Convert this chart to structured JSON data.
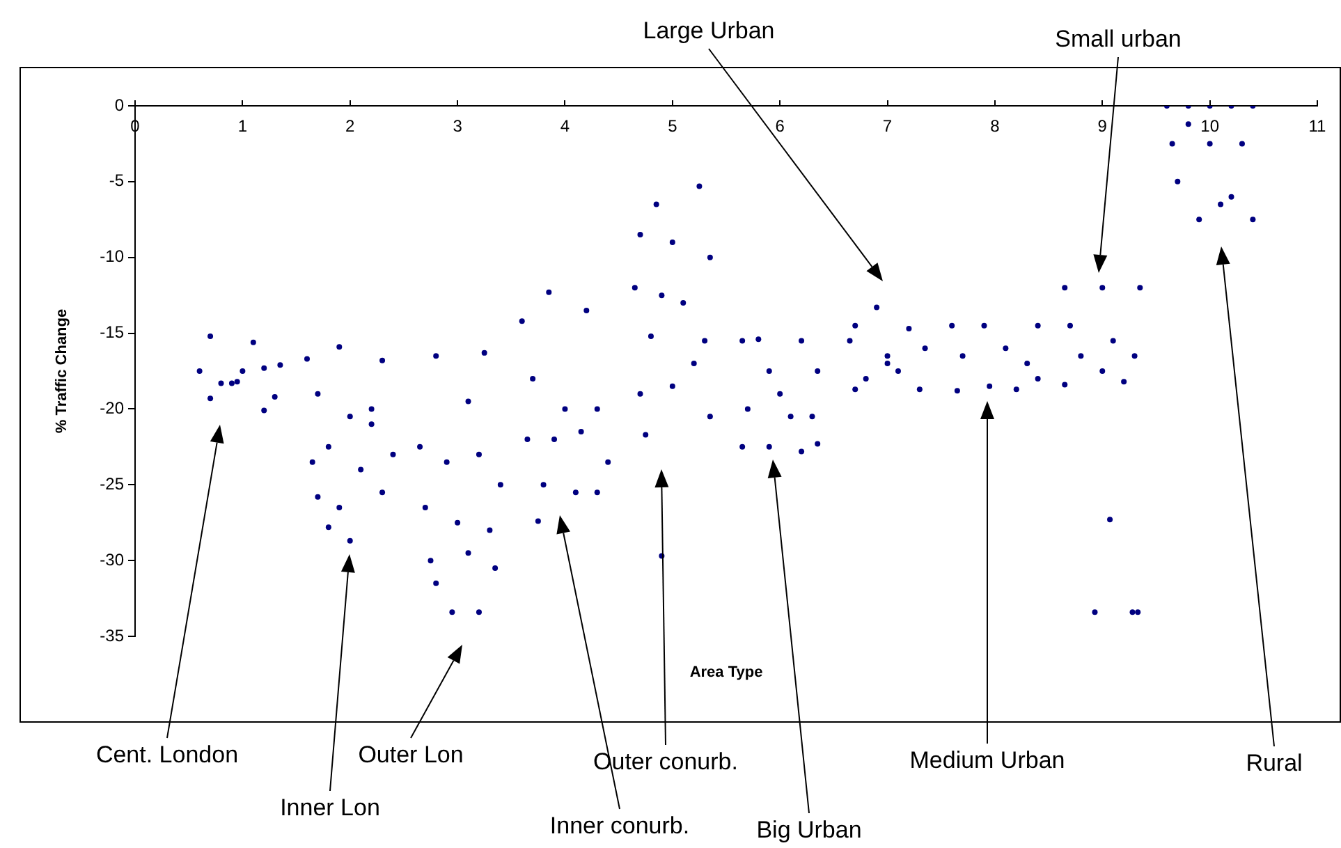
{
  "chart_data": {
    "type": "scatter",
    "xlabel": "Area Type",
    "ylabel": "% Traffic Change",
    "xlim": [
      0,
      11
    ],
    "xticks": [
      0,
      1,
      2,
      3,
      4,
      5,
      6,
      7,
      8,
      9,
      10,
      11
    ],
    "ylim": [
      -35,
      0
    ],
    "yticks": [
      0,
      -5,
      -10,
      -15,
      -20,
      -25,
      -30,
      -35
    ],
    "marker": "circle",
    "legend": false,
    "series": [
      {
        "color": "#000080",
        "x": [
          0.7,
          1.1,
          0.6,
          0.8,
          0.9,
          1.0,
          1.2,
          1.3,
          1.2,
          0.7,
          1.35,
          0.95,
          1.6,
          1.9,
          2.3,
          1.7,
          2.0,
          2.2,
          1.65,
          1.8,
          2.1,
          2.4,
          1.9,
          2.0,
          2.3,
          1.8,
          2.2,
          1.7,
          2.8,
          3.25,
          3.1,
          2.65,
          2.9,
          3.2,
          3.4,
          2.7,
          3.0,
          3.3,
          2.75,
          3.1,
          2.8,
          3.35,
          2.95,
          3.2,
          3.85,
          3.6,
          4.2,
          3.7,
          4.0,
          4.3,
          3.65,
          3.9,
          4.15,
          4.4,
          3.8,
          4.1,
          4.3,
          3.75,
          5.25,
          4.85,
          4.7,
          5.0,
          5.35,
          4.65,
          4.9,
          5.1,
          5.3,
          4.8,
          5.2,
          4.7,
          5.0,
          5.35,
          4.75,
          4.9,
          5.8,
          6.2,
          5.65,
          5.9,
          6.35,
          6.0,
          5.7,
          6.1,
          6.3,
          5.65,
          5.9,
          6.2,
          6.35,
          6.9,
          6.7,
          7.2,
          6.65,
          7.0,
          7.35,
          6.8,
          7.1,
          7.3,
          6.7,
          7.0,
          7.6,
          7.9,
          8.4,
          7.7,
          8.1,
          8.3,
          7.65,
          7.95,
          8.2,
          8.4,
          8.65,
          9.0,
          9.35,
          8.7,
          9.1,
          9.3,
          8.65,
          9.0,
          9.2,
          8.8,
          9.07,
          8.93,
          9.28,
          9.33,
          9.6,
          9.8,
          10.0,
          10.2,
          10.4,
          9.8,
          9.65,
          10.0,
          10.3,
          9.7,
          10.1,
          10.4,
          9.9,
          10.2
        ],
        "values": [
          -15.2,
          -15.6,
          -17.5,
          -18.3,
          -18.3,
          -17.5,
          -17.3,
          -19.2,
          -20.1,
          -19.3,
          -17.1,
          -18.2,
          -16.7,
          -15.9,
          -16.8,
          -19.0,
          -20.5,
          -21.0,
          -23.5,
          -22.5,
          -24.0,
          -23.0,
          -26.5,
          -28.7,
          -25.5,
          -27.8,
          -20.0,
          -25.8,
          -16.5,
          -16.3,
          -19.5,
          -22.5,
          -23.5,
          -23.0,
          -25.0,
          -26.5,
          -27.5,
          -28.0,
          -30.0,
          -29.5,
          -31.5,
          -30.5,
          -33.4,
          -33.4,
          -12.3,
          -14.2,
          -13.5,
          -18.0,
          -20.0,
          -20.0,
          -22.0,
          -22.0,
          -21.5,
          -23.5,
          -25.0,
          -25.5,
          -25.5,
          -27.4,
          -5.3,
          -6.5,
          -8.5,
          -9.0,
          -10.0,
          -12.0,
          -12.5,
          -13.0,
          -15.5,
          -15.2,
          -17.0,
          -19.0,
          -18.5,
          -20.5,
          -21.7,
          -29.7,
          -15.4,
          -15.5,
          -15.5,
          -17.5,
          -17.5,
          -19.0,
          -20.0,
          -20.5,
          -20.5,
          -22.5,
          -22.5,
          -22.8,
          -22.3,
          -13.3,
          -14.5,
          -14.7,
          -15.5,
          -16.5,
          -16.0,
          -18.0,
          -17.5,
          -18.7,
          -18.7,
          -17.0,
          -14.5,
          -14.5,
          -14.5,
          -16.5,
          -16.0,
          -17.0,
          -18.8,
          -18.5,
          -18.7,
          -18.0,
          -12.0,
          -12.0,
          -12.0,
          -14.5,
          -15.5,
          -16.5,
          -18.4,
          -17.5,
          -18.2,
          -16.5,
          -27.3,
          -33.4,
          -33.4,
          -33.4,
          0,
          0,
          0,
          0,
          0,
          -1.2,
          -2.5,
          -2.5,
          -2.5,
          -5.0,
          -6.5,
          -7.5,
          -7.5,
          -6.0
        ]
      }
    ],
    "annotations": [
      "Cent. London",
      "Inner Lon",
      "Outer Lon",
      "Inner conurb.",
      "Outer conurb.",
      "Big Urban",
      "Large Urban",
      "Small urban",
      "Medium Urban",
      "Rural"
    ]
  }
}
